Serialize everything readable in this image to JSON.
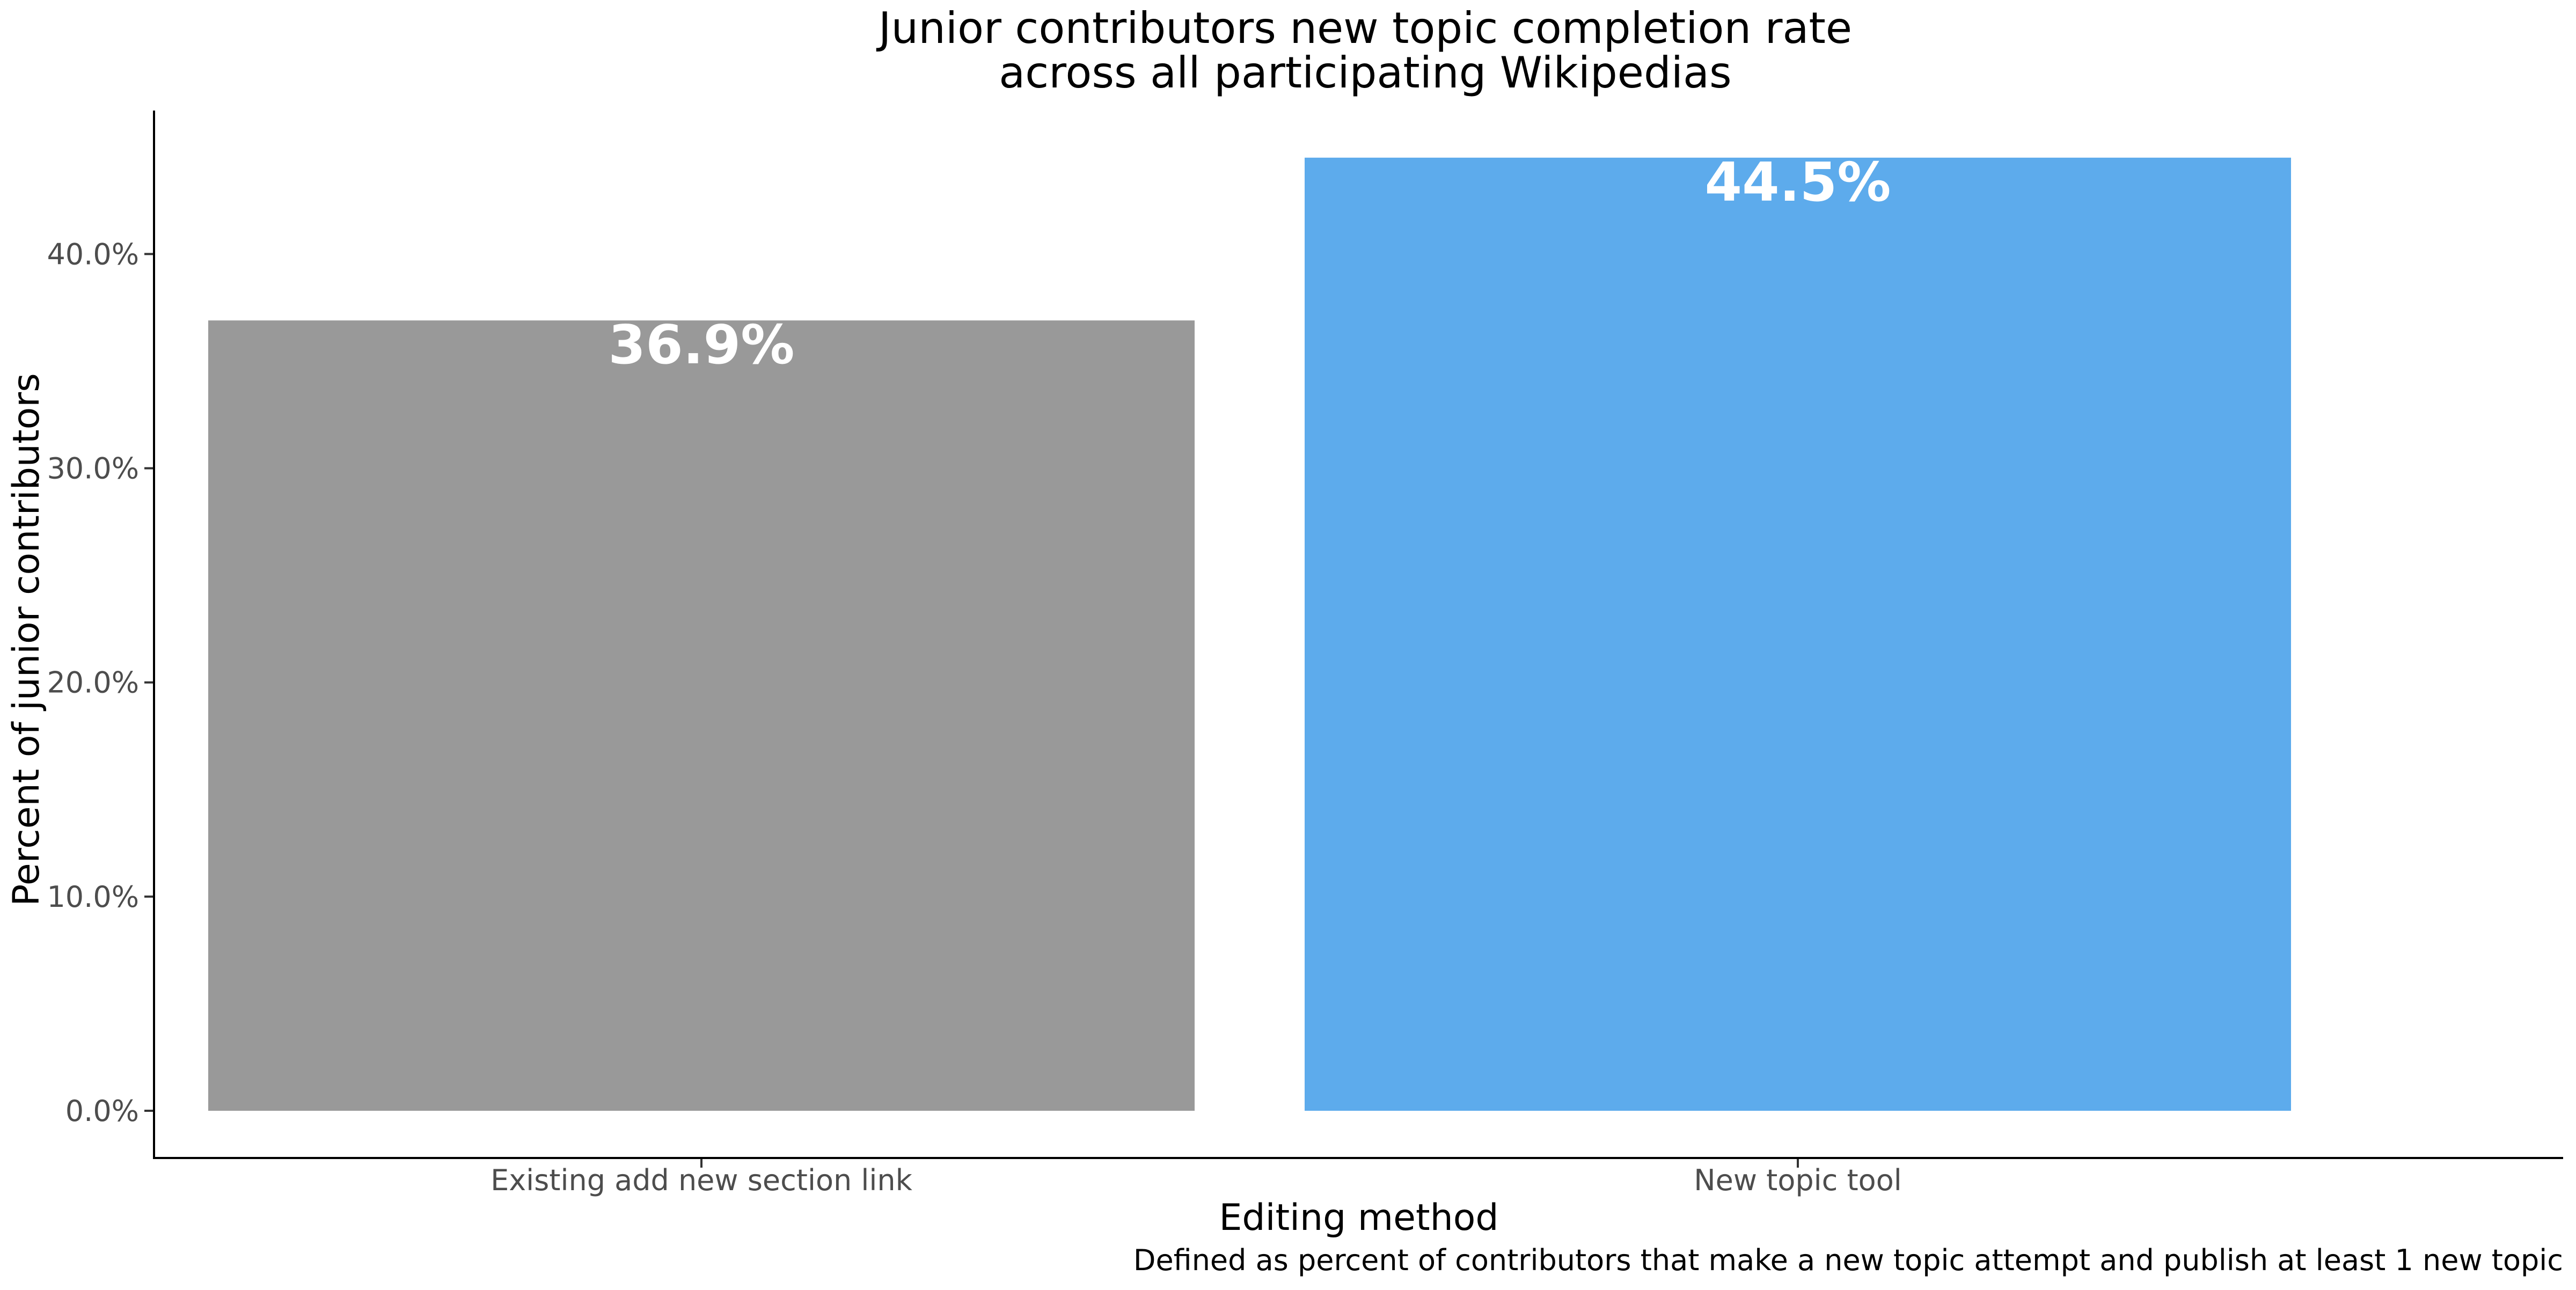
{
  "chart_data": {
    "type": "bar",
    "title_lines": [
      "Junior contributors new topic completion rate",
      "across all participating Wikipedias"
    ],
    "xlabel": "Editing method",
    "ylabel": "Percent of junior contributors",
    "caption": "Defined as percent of contributors that make a new topic attempt and publish at least 1 new topic",
    "categories": [
      "Existing add new section link",
      "New topic tool"
    ],
    "values": [
      36.9,
      44.5
    ],
    "data_labels": [
      "36.9%",
      "44.5%"
    ],
    "bar_colors": [
      "#999999",
      "#5DABEC"
    ],
    "ylim": [
      0,
      46.7
    ],
    "y_ticks": [
      0,
      10,
      20,
      30,
      40
    ],
    "y_tick_labels": [
      "0.0%",
      "10.0%",
      "20.0%",
      "30.0%",
      "40.0%"
    ],
    "grid": false,
    "legend": "none"
  }
}
